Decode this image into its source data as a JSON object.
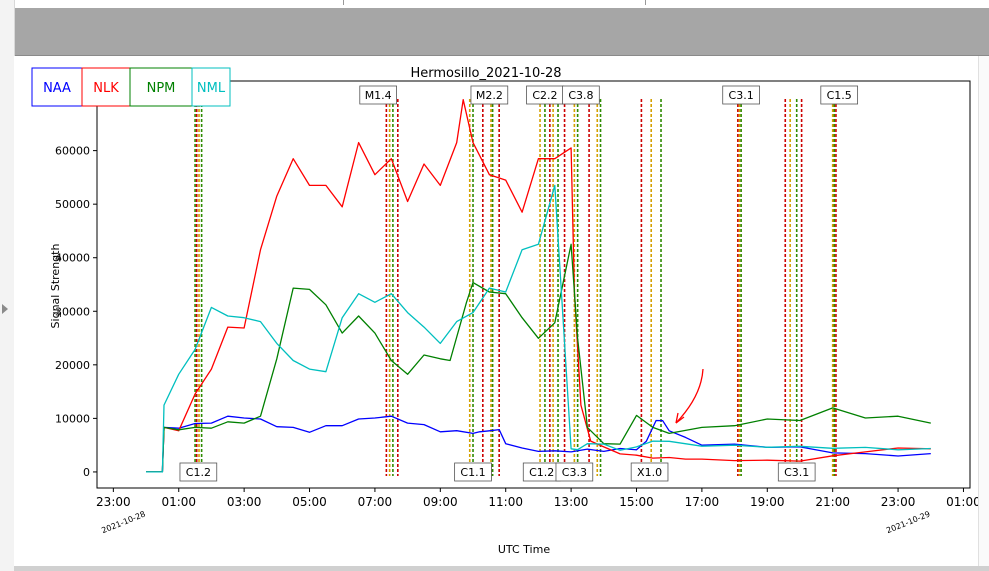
{
  "chart_data": {
    "type": "line",
    "title": "Hermosillo_2021-10-28",
    "xlabel": "UTC Time",
    "ylabel": "Signal Strength",
    "ylim": [
      -3000,
      73000
    ],
    "xlim": [
      -1.5,
      25.2
    ],
    "grid": false,
    "legend_position": "top-left",
    "x_ticks": [
      {
        "hour": -1,
        "label": "23:00"
      },
      {
        "hour": 1,
        "label": "01:00"
      },
      {
        "hour": 3,
        "label": "03:00"
      },
      {
        "hour": 5,
        "label": "05:00"
      },
      {
        "hour": 7,
        "label": "07:00"
      },
      {
        "hour": 9,
        "label": "09:00"
      },
      {
        "hour": 11,
        "label": "11:00"
      },
      {
        "hour": 13,
        "label": "13:00"
      },
      {
        "hour": 15,
        "label": "15:00"
      },
      {
        "hour": 17,
        "label": "17:00"
      },
      {
        "hour": 19,
        "label": "19:00"
      },
      {
        "hour": 21,
        "label": "21:00"
      },
      {
        "hour": 23,
        "label": "23:00"
      },
      {
        "hour": 25,
        "label": "01:00"
      }
    ],
    "date_labels": [
      {
        "hour": 0,
        "label": "2021-10-28"
      },
      {
        "hour": 24,
        "label": "2021-10-29"
      }
    ],
    "y_ticks": [
      0,
      10000,
      20000,
      30000,
      40000,
      50000,
      60000,
      70000
    ],
    "series": [
      {
        "name": "NAA",
        "color": "#0000ff",
        "x": [
          0,
          0.5,
          0.55,
          1,
          1.5,
          2,
          2.5,
          3,
          3.5,
          4,
          4.5,
          5,
          5.5,
          6,
          6.5,
          7,
          7.5,
          8,
          8.5,
          9,
          9.5,
          10,
          10.2,
          10.5,
          10.8,
          11,
          11.5,
          12,
          12.5,
          13,
          13.5,
          14,
          14.5,
          15,
          15.3,
          15.6,
          15.8,
          16,
          16.5,
          17,
          18,
          19,
          20,
          21,
          22,
          23,
          24
        ],
        "values": [
          0,
          0,
          8000,
          8500,
          8700,
          9500,
          10000,
          10500,
          9500,
          8800,
          8000,
          7700,
          8300,
          9000,
          9500,
          10500,
          10000,
          9500,
          8500,
          7800,
          7400,
          7500,
          7200,
          8000,
          7600,
          5500,
          4300,
          4000,
          3800,
          3900,
          4100,
          4000,
          4200,
          4300,
          5500,
          10000,
          9200,
          8000,
          6200,
          5200,
          5000,
          4800,
          4500,
          3700,
          3300,
          3100,
          3300
        ]
      },
      {
        "name": "NLK",
        "color": "#ff0000",
        "x": [
          0,
          0.5,
          0.55,
          1,
          1.5,
          2,
          2.5,
          3,
          3.5,
          4,
          4.5,
          5,
          5.5,
          6,
          6.5,
          7,
          7.5,
          8,
          8.5,
          9,
          9.5,
          9.7,
          10,
          10.5,
          11,
          11.5,
          12,
          12.5,
          13,
          13.1,
          13.3,
          13.6,
          14,
          14.5,
          15,
          15.5,
          16,
          16.5,
          17,
          18,
          19,
          20,
          21,
          22,
          23,
          24
        ],
        "values": [
          0,
          0,
          8000,
          8000,
          14000,
          20000,
          26000,
          28000,
          40000,
          53000,
          57000,
          55000,
          52000,
          51000,
          60000,
          57000,
          57000,
          52000,
          56000,
          55000,
          60000,
          71000,
          60000,
          57000,
          53000,
          50000,
          57000,
          60000,
          59000,
          35000,
          12000,
          6000,
          4500,
          3500,
          3000,
          2700,
          2600,
          2500,
          2300,
          2200,
          2100,
          2100,
          2900,
          3900,
          4300,
          4500
        ]
      },
      {
        "name": "NPM",
        "color": "#008000",
        "x": [
          0,
          0.5,
          0.55,
          1,
          1.5,
          2,
          2.5,
          3,
          3.5,
          4,
          4.5,
          5,
          5.5,
          6,
          6.5,
          7,
          7.5,
          8,
          8.5,
          9,
          9.3,
          9.8,
          10,
          10.5,
          11,
          11.5,
          12,
          12.5,
          13,
          13.2,
          13.5,
          14,
          14.5,
          15,
          15.5,
          16,
          17,
          18,
          19,
          20,
          21,
          22,
          23,
          24
        ],
        "values": [
          0,
          0,
          8000,
          8200,
          8000,
          8500,
          9000,
          9500,
          10000,
          22000,
          33000,
          35500,
          30000,
          27000,
          28000,
          27000,
          20000,
          19000,
          21000,
          22000,
          20000,
          33000,
          34000,
          35000,
          32000,
          30000,
          24000,
          29000,
          41000,
          26000,
          8000,
          5500,
          5000,
          11000,
          8000,
          7500,
          8000,
          9000,
          9500,
          10000,
          11500,
          10500,
          10000,
          9500
        ]
      },
      {
        "name": "NML",
        "color": "#00bfbf",
        "x": [
          0,
          0.5,
          0.55,
          1,
          1.5,
          2,
          2.5,
          3,
          3.5,
          4,
          4.5,
          5,
          5.5,
          6,
          6.5,
          7,
          7.5,
          8,
          8.5,
          9,
          9.5,
          10,
          10.5,
          11,
          11.5,
          12,
          12.5,
          13,
          13.2,
          13.5,
          14,
          14.5,
          15,
          15.5,
          16,
          17,
          18,
          19,
          20,
          21,
          22,
          23,
          24
        ],
        "values": [
          0,
          0,
          12000,
          19000,
          22000,
          32000,
          28000,
          30000,
          27000,
          25000,
          20000,
          20000,
          18000,
          30000,
          32000,
          33000,
          32000,
          31000,
          26000,
          25000,
          27000,
          31000,
          33000,
          35000,
          40000,
          44000,
          52000,
          4500,
          4000,
          5500,
          5000,
          4200,
          4500,
          6000,
          5500,
          5000,
          4800,
          4800,
          4600,
          4600,
          4400,
          4300,
          4200
        ]
      }
    ],
    "flare_annotations": {
      "top": [
        {
          "hour": 7.1,
          "label": "M1.4"
        },
        {
          "hour": 10.5,
          "label": "M2.2"
        },
        {
          "hour": 12.2,
          "label": "C2.2"
        },
        {
          "hour": 13.3,
          "label": "C3.8"
        },
        {
          "hour": 18.2,
          "label": "C3.1"
        },
        {
          "hour": 21.2,
          "label": "C1.5"
        }
      ],
      "bottom": [
        {
          "hour": 1.6,
          "label": "C1.2"
        },
        {
          "hour": 10.0,
          "label": "C1.1"
        },
        {
          "hour": 12.1,
          "label": "C1.2"
        },
        {
          "hour": 13.1,
          "label": "C3.3"
        },
        {
          "hour": 15.4,
          "label": "X1.0"
        },
        {
          "hour": 19.9,
          "label": "C3.1"
        }
      ]
    },
    "flare_lines": [
      1.5,
      1.55,
      1.62,
      1.7,
      7.35,
      7.45,
      7.55,
      7.7,
      9.9,
      10.0,
      10.3,
      10.55,
      10.6,
      10.8,
      12.05,
      12.2,
      12.35,
      12.45,
      12.6,
      12.8,
      13.1,
      13.2,
      13.55,
      13.8,
      13.9,
      15.15,
      15.45,
      15.75,
      18.1,
      18.15,
      18.2,
      19.55,
      19.7,
      19.9,
      20.05,
      21.0,
      21.05,
      21.1
    ]
  }
}
